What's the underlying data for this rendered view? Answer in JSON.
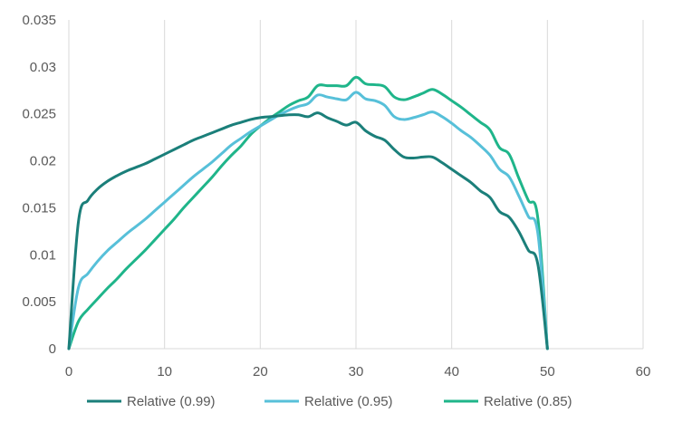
{
  "chart_data": {
    "type": "line",
    "title": "",
    "xlabel": "",
    "ylabel": "",
    "xlim": [
      0,
      60
    ],
    "ylim": [
      0,
      0.035
    ],
    "x_ticks": [
      "0",
      "10",
      "20",
      "30",
      "40",
      "50",
      "60"
    ],
    "y_ticks": [
      "0",
      "0.005",
      "0.01",
      "0.015",
      "0.02",
      "0.025",
      "0.03",
      "0.035"
    ],
    "grid": "vertical",
    "legend_position": "bottom",
    "series": [
      {
        "name": "Relative (0.99)",
        "color": "#1b7f7a",
        "points": [
          [
            0,
            0
          ],
          [
            1,
            0.0135
          ],
          [
            2,
            0.0158
          ],
          [
            3,
            0.017
          ],
          [
            4,
            0.0178
          ],
          [
            5,
            0.0184
          ],
          [
            6,
            0.0189
          ],
          [
            7,
            0.0193
          ],
          [
            8,
            0.0197
          ],
          [
            9,
            0.0202
          ],
          [
            10,
            0.0207
          ],
          [
            11,
            0.0212
          ],
          [
            12,
            0.0217
          ],
          [
            13,
            0.0222
          ],
          [
            14,
            0.0226
          ],
          [
            15,
            0.023
          ],
          [
            16,
            0.0234
          ],
          [
            17,
            0.0238
          ],
          [
            18,
            0.0241
          ],
          [
            19,
            0.0244
          ],
          [
            20,
            0.0246
          ],
          [
            21,
            0.0247
          ],
          [
            22,
            0.0248
          ],
          [
            23,
            0.0249
          ],
          [
            24,
            0.0249
          ],
          [
            25,
            0.0247
          ],
          [
            26,
            0.0251
          ],
          [
            27,
            0.0246
          ],
          [
            28,
            0.0242
          ],
          [
            29,
            0.0238
          ],
          [
            30,
            0.0241
          ],
          [
            31,
            0.0232
          ],
          [
            32,
            0.0226
          ],
          [
            33,
            0.0222
          ],
          [
            34,
            0.0212
          ],
          [
            35,
            0.0204
          ],
          [
            36,
            0.0203
          ],
          [
            37,
            0.0204
          ],
          [
            38,
            0.0204
          ],
          [
            39,
            0.0198
          ],
          [
            40,
            0.0191
          ],
          [
            41,
            0.0184
          ],
          [
            42,
            0.0177
          ],
          [
            43,
            0.0168
          ],
          [
            44,
            0.0161
          ],
          [
            45,
            0.0146
          ],
          [
            46,
            0.014
          ],
          [
            47,
            0.0125
          ],
          [
            48,
            0.0105
          ],
          [
            49,
            0.009
          ],
          [
            50,
            0
          ]
        ]
      },
      {
        "name": "Relative (0.95)",
        "color": "#57c0d9",
        "points": [
          [
            0,
            0
          ],
          [
            1,
            0.0065
          ],
          [
            2,
            0.008
          ],
          [
            3,
            0.0093
          ],
          [
            4,
            0.0104
          ],
          [
            5,
            0.0113
          ],
          [
            6,
            0.0122
          ],
          [
            7,
            0.013
          ],
          [
            8,
            0.0138
          ],
          [
            9,
            0.0147
          ],
          [
            10,
            0.0156
          ],
          [
            11,
            0.0165
          ],
          [
            12,
            0.0174
          ],
          [
            13,
            0.0183
          ],
          [
            14,
            0.0191
          ],
          [
            15,
            0.0199
          ],
          [
            16,
            0.0208
          ],
          [
            17,
            0.0217
          ],
          [
            18,
            0.0224
          ],
          [
            19,
            0.0231
          ],
          [
            20,
            0.0237
          ],
          [
            21,
            0.0243
          ],
          [
            22,
            0.0249
          ],
          [
            23,
            0.0254
          ],
          [
            24,
            0.0258
          ],
          [
            25,
            0.0261
          ],
          [
            26,
            0.027
          ],
          [
            27,
            0.0268
          ],
          [
            28,
            0.0266
          ],
          [
            29,
            0.0265
          ],
          [
            30,
            0.0273
          ],
          [
            31,
            0.0266
          ],
          [
            32,
            0.0264
          ],
          [
            33,
            0.0259
          ],
          [
            34,
            0.0247
          ],
          [
            35,
            0.0244
          ],
          [
            36,
            0.0246
          ],
          [
            37,
            0.0249
          ],
          [
            38,
            0.0252
          ],
          [
            39,
            0.0247
          ],
          [
            40,
            0.024
          ],
          [
            41,
            0.0232
          ],
          [
            42,
            0.0225
          ],
          [
            43,
            0.0216
          ],
          [
            44,
            0.0206
          ],
          [
            45,
            0.0191
          ],
          [
            46,
            0.0183
          ],
          [
            47,
            0.0163
          ],
          [
            48,
            0.0141
          ],
          [
            49,
            0.0123
          ],
          [
            50,
            0
          ]
        ]
      },
      {
        "name": "Relative (0.85)",
        "color": "#1fb58a",
        "points": [
          [
            0,
            0
          ],
          [
            1,
            0.0029
          ],
          [
            2,
            0.0042
          ],
          [
            3,
            0.0053
          ],
          [
            4,
            0.0064
          ],
          [
            5,
            0.0074
          ],
          [
            6,
            0.0085
          ],
          [
            7,
            0.0095
          ],
          [
            8,
            0.0105
          ],
          [
            9,
            0.0116
          ],
          [
            10,
            0.0127
          ],
          [
            11,
            0.0138
          ],
          [
            12,
            0.015
          ],
          [
            13,
            0.0161
          ],
          [
            14,
            0.0172
          ],
          [
            15,
            0.0183
          ],
          [
            16,
            0.0195
          ],
          [
            17,
            0.0206
          ],
          [
            18,
            0.0216
          ],
          [
            19,
            0.0228
          ],
          [
            20,
            0.0237
          ],
          [
            21,
            0.0245
          ],
          [
            22,
            0.0252
          ],
          [
            23,
            0.0259
          ],
          [
            24,
            0.0264
          ],
          [
            25,
            0.0268
          ],
          [
            26,
            0.028
          ],
          [
            27,
            0.028
          ],
          [
            28,
            0.028
          ],
          [
            29,
            0.028
          ],
          [
            30,
            0.0289
          ],
          [
            31,
            0.0282
          ],
          [
            32,
            0.0281
          ],
          [
            33,
            0.0279
          ],
          [
            34,
            0.0268
          ],
          [
            35,
            0.0265
          ],
          [
            36,
            0.0268
          ],
          [
            37,
            0.0272
          ],
          [
            38,
            0.0276
          ],
          [
            39,
            0.0271
          ],
          [
            40,
            0.0264
          ],
          [
            41,
            0.0257
          ],
          [
            42,
            0.0249
          ],
          [
            43,
            0.0241
          ],
          [
            44,
            0.0233
          ],
          [
            45,
            0.0214
          ],
          [
            46,
            0.0207
          ],
          [
            47,
            0.0182
          ],
          [
            48,
            0.0158
          ],
          [
            49,
            0.0139
          ],
          [
            50,
            0
          ]
        ]
      }
    ]
  }
}
